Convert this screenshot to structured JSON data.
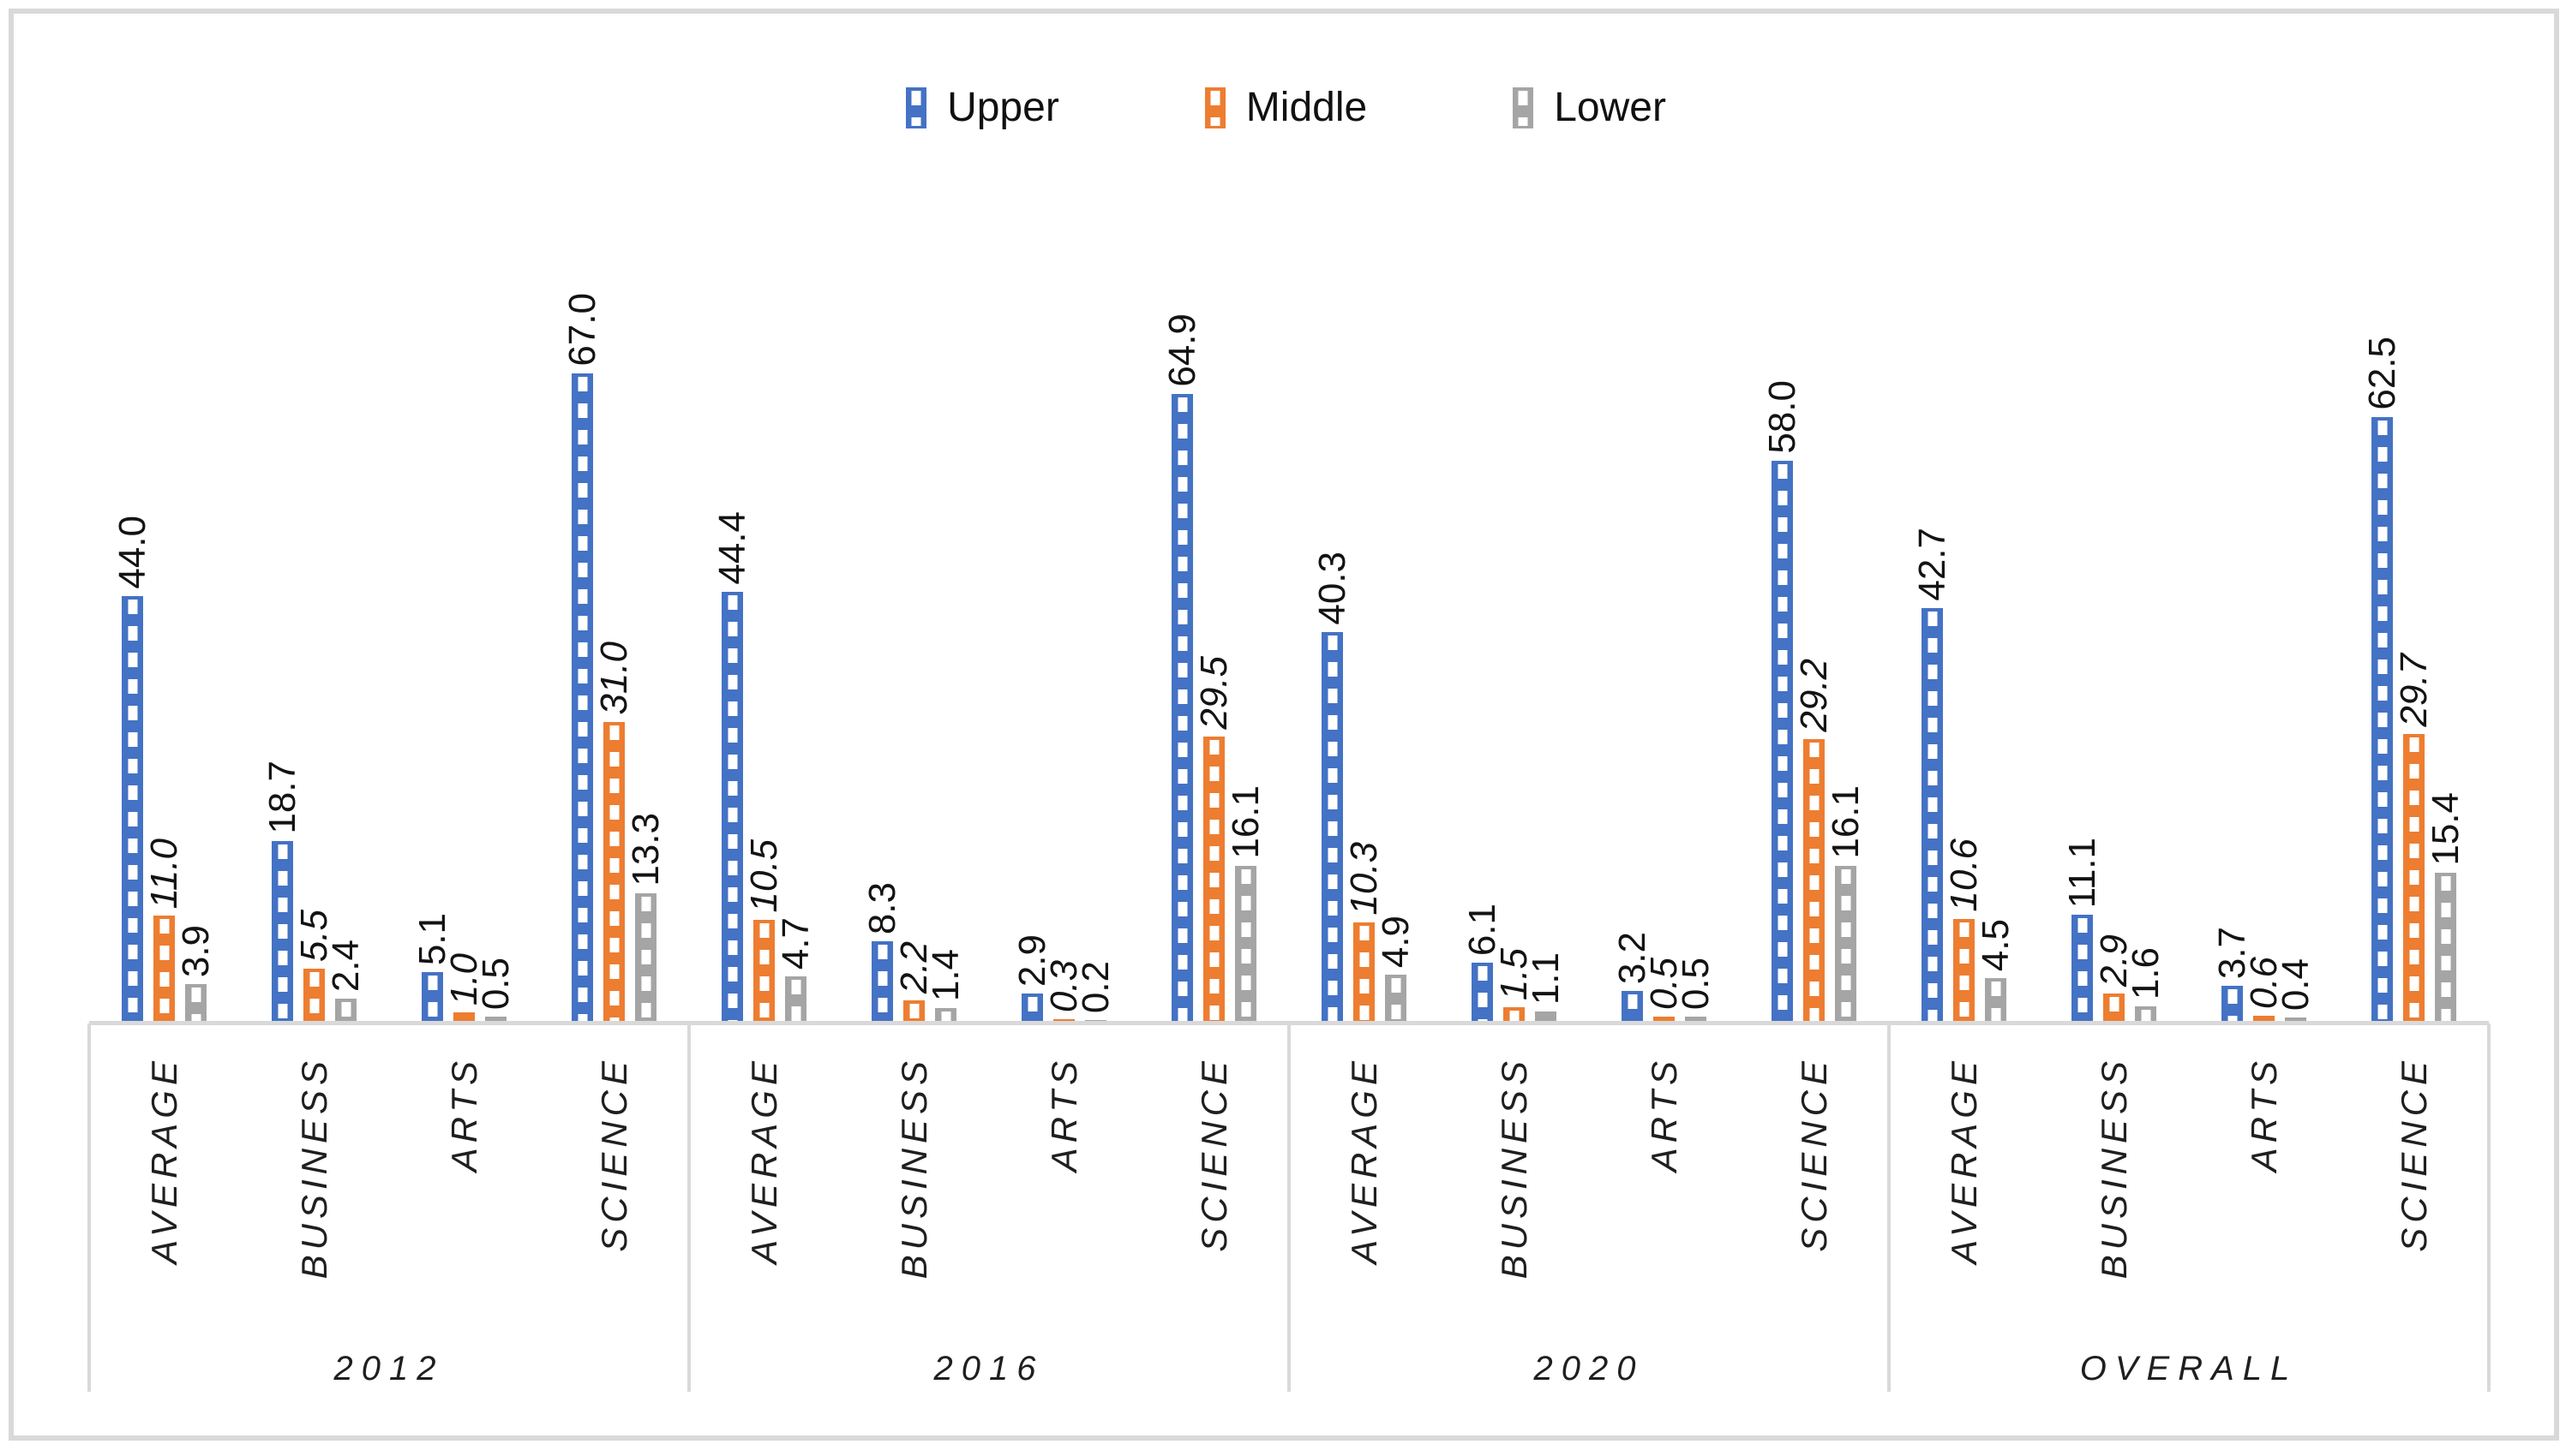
{
  "legend": {
    "items": [
      {
        "label": "Upper",
        "color": "#4472C4"
      },
      {
        "label": "Middle",
        "color": "#ED7D31"
      },
      {
        "label": "Lower",
        "color": "#A5A5A5"
      }
    ]
  },
  "chart_data": {
    "type": "bar",
    "title": "",
    "legend_position": "top",
    "grid": false,
    "value_axis_visible": false,
    "data_labels": "outside-end, rotated 90deg, one decimal; Middle series labels italic",
    "ylim": [
      0,
      70
    ],
    "axis": {
      "categories_level": [
        "AVERAGE",
        "BUSINESS",
        "ARTS",
        "SCIENCE"
      ],
      "groups_level": [
        "2012",
        "2016",
        "2020",
        "OVERALL"
      ],
      "line_color": "#D9D9D9"
    },
    "series": [
      {
        "name": "Upper",
        "color": "#4472C4",
        "pattern": "white dashed center stripe",
        "values": {
          "2012": [
            44.0,
            18.7,
            5.1,
            67.0
          ],
          "2016": [
            44.4,
            8.3,
            2.9,
            64.9
          ],
          "2020": [
            40.3,
            6.1,
            3.2,
            58.0
          ],
          "OVERALL": [
            42.7,
            11.1,
            3.7,
            62.5
          ]
        }
      },
      {
        "name": "Middle",
        "color": "#ED7D31",
        "pattern": "white dashed center stripe",
        "italic_value_labels": true,
        "values": {
          "2012": [
            11.0,
            5.5,
            1.0,
            31.0
          ],
          "2016": [
            10.5,
            2.2,
            0.3,
            29.5
          ],
          "2020": [
            10.3,
            1.5,
            0.5,
            29.2
          ],
          "OVERALL": [
            10.6,
            2.9,
            0.6,
            29.7
          ]
        }
      },
      {
        "name": "Lower",
        "color": "#A5A5A5",
        "pattern": "white dashed center stripe",
        "values": {
          "2012": [
            3.9,
            2.4,
            0.5,
            13.3
          ],
          "2016": [
            4.7,
            1.4,
            0.2,
            16.1
          ],
          "2020": [
            4.9,
            1.1,
            0.5,
            16.1
          ],
          "OVERALL": [
            4.5,
            1.6,
            0.4,
            15.4
          ]
        }
      }
    ]
  }
}
